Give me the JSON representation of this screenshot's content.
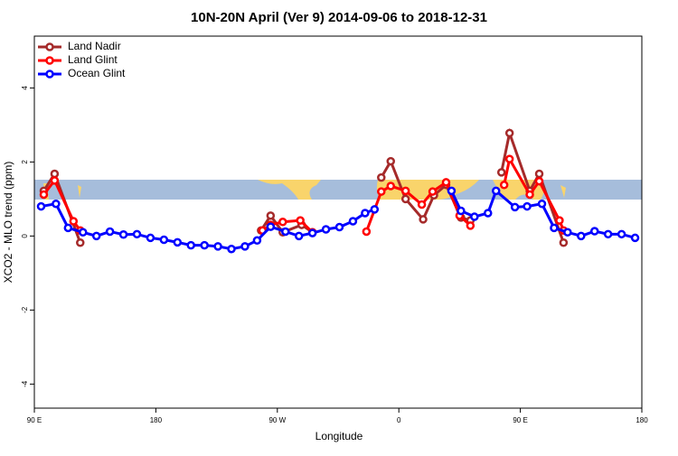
{
  "chart_data": {
    "type": "line",
    "title": "10N-20N April (Ver 9)   2014-09-06 to 2018-12-31",
    "x_label": "Longitude",
    "y_label": "XCO2 - MLO trend (ppm)",
    "xlim": [
      90,
      540
    ],
    "xticks": [
      {
        "value": 90,
        "label": "90 E"
      },
      {
        "value": 180,
        "label": "180"
      },
      {
        "value": 270,
        "label": "90 W"
      },
      {
        "value": 360,
        "label": "0"
      },
      {
        "value": 450,
        "label": "90 E"
      },
      {
        "value": 540,
        "label": "180"
      }
    ],
    "ylim": [
      -4.65,
      5.4
    ],
    "yticks": [
      -4,
      -2,
      0,
      2,
      4
    ],
    "legend": "top-left",
    "series": [
      {
        "name": "Land Nadir",
        "color": "#a52a2a",
        "x": [
          97,
          105,
          124,
          190,
          258,
          265,
          274,
          288,
          296,
          330,
          347,
          354,
          365,
          378,
          386,
          395,
          406,
          413,
          425,
          436,
          442,
          457,
          464,
          482
        ],
        "values": [
          1.22,
          1.68,
          -0.18,
          null,
          0.15,
          0.55,
          0.1,
          0.3,
          0.1,
          null,
          1.58,
          2.02,
          1.0,
          0.45,
          1.1,
          1.38,
          0.5,
          0.42,
          null,
          1.72,
          2.78,
          1.22,
          1.68,
          -0.18
        ]
      },
      {
        "name": "Land Glint",
        "color": "#ff0000",
        "x": [
          97,
          105,
          119,
          124,
          190,
          259,
          265,
          274,
          287,
          296,
          320,
          336,
          347,
          354,
          365,
          377,
          385,
          395,
          405,
          413,
          425,
          438,
          442,
          457,
          464,
          479,
          482
        ],
        "values": [
          1.12,
          1.5,
          0.4,
          0.15,
          null,
          0.15,
          0.3,
          0.38,
          0.42,
          0.1,
          null,
          0.12,
          1.2,
          1.35,
          1.22,
          0.85,
          1.2,
          1.45,
          0.55,
          0.28,
          null,
          1.38,
          2.08,
          1.12,
          1.48,
          0.42,
          0.15
        ]
      },
      {
        "name": "Ocean Glint",
        "color": "#0000ff",
        "x": [
          95,
          106,
          115,
          126,
          136,
          146,
          156,
          166,
          176,
          186,
          196,
          206,
          216,
          226,
          236,
          246,
          255,
          265,
          276,
          286,
          296,
          306,
          316,
          326,
          335,
          342,
          370,
          399,
          406,
          416,
          426,
          432,
          446,
          455,
          466,
          475,
          485,
          495,
          505,
          515,
          525,
          535
        ],
        "values": [
          0.8,
          0.87,
          0.22,
          0.1,
          0.0,
          0.12,
          0.04,
          0.05,
          -0.05,
          -0.1,
          -0.17,
          -0.25,
          -0.25,
          -0.28,
          -0.35,
          -0.28,
          -0.12,
          0.25,
          0.12,
          0.0,
          0.08,
          0.18,
          0.24,
          0.4,
          0.62,
          0.72,
          null,
          1.22,
          0.68,
          0.52,
          0.62,
          1.22,
          0.78,
          0.8,
          0.87,
          0.22,
          0.1,
          0.0,
          0.13,
          0.05,
          0.05,
          -0.05
        ]
      }
    ]
  }
}
